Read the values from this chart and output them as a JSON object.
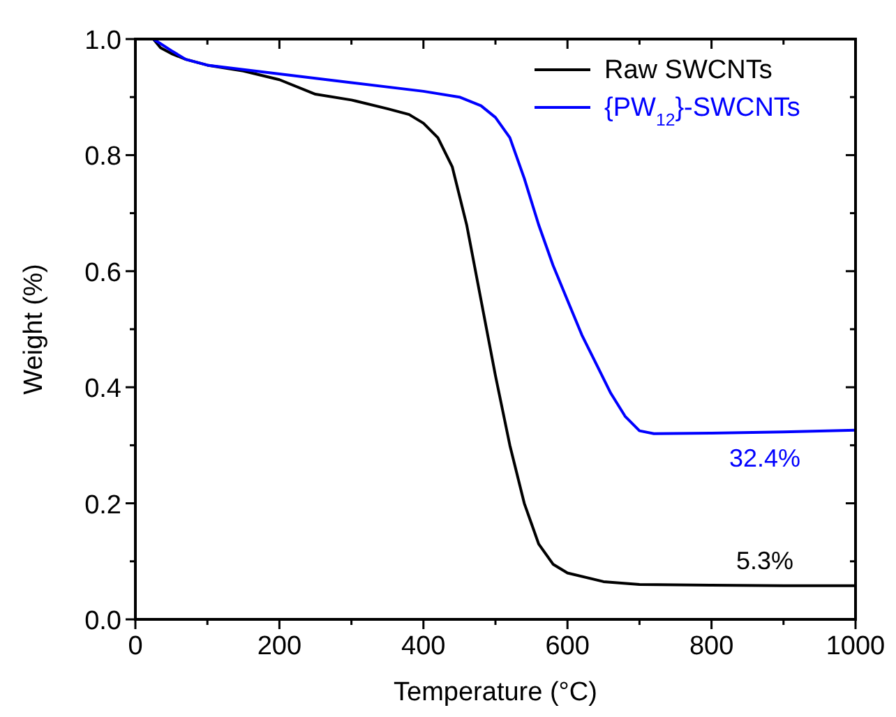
{
  "chart_data": {
    "type": "line",
    "xlabel": "Temperature (°C)",
    "ylabel": "Weight (%)",
    "xlim": [
      0,
      1000
    ],
    "ylim": [
      0,
      1
    ],
    "xticks": [
      0,
      {
        "value": 100,
        "label": null
      },
      200,
      {
        "value": 300,
        "label": null
      },
      400,
      {
        "value": 500,
        "label": null
      },
      600,
      {
        "value": 700,
        "label": null
      },
      800,
      {
        "value": 900,
        "label": null
      },
      1000
    ],
    "yticks": [
      "0.0",
      {
        "value": 0.1,
        "label": null
      },
      0.2,
      {
        "value": 0.3,
        "label": null
      },
      0.4,
      {
        "value": 0.5,
        "label": null
      },
      0.6,
      {
        "value": 0.7,
        "label": null
      },
      0.8,
      {
        "value": 0.9,
        "label": null
      },
      "1.0"
    ],
    "grid": false,
    "legend": "top right",
    "marker": "none",
    "line_style": "solid",
    "series": [
      {
        "name": "Raw SWCNTs",
        "color": "#000000",
        "x": [
          25,
          35,
          50,
          70,
          100,
          150,
          200,
          250,
          300,
          350,
          380,
          400,
          420,
          440,
          460,
          480,
          500,
          520,
          540,
          560,
          580,
          600,
          650,
          700,
          800,
          900,
          1000
        ],
        "values": [
          1.0,
          0.985,
          0.975,
          0.965,
          0.955,
          0.945,
          0.93,
          0.905,
          0.895,
          0.88,
          0.87,
          0.855,
          0.83,
          0.78,
          0.68,
          0.55,
          0.42,
          0.3,
          0.2,
          0.13,
          0.095,
          0.08,
          0.065,
          0.06,
          0.059,
          0.058,
          0.058
        ]
      },
      {
        "name": "{PW$_{12}$}-SWCNTs",
        "color": "#0000ff",
        "x": [
          25,
          50,
          70,
          100,
          200,
          300,
          400,
          450,
          480,
          500,
          520,
          540,
          560,
          580,
          600,
          620,
          640,
          660,
          680,
          700,
          720,
          800,
          900,
          1000
        ],
        "values": [
          1.0,
          0.98,
          0.965,
          0.955,
          0.94,
          0.925,
          0.91,
          0.9,
          0.885,
          0.865,
          0.83,
          0.76,
          0.68,
          0.61,
          0.55,
          0.49,
          0.44,
          0.39,
          0.35,
          0.325,
          0.32,
          0.321,
          0.323,
          0.326
        ]
      }
    ],
    "annotations": [
      "5.3%",
      "32.4%"
    ]
  }
}
